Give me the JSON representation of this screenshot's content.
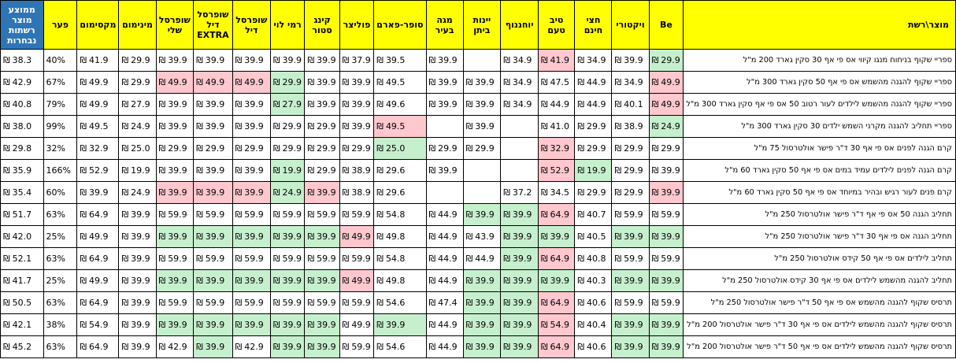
{
  "columns": [
    "מוצר\\רשת",
    "Be",
    "ויקטורי",
    "חצי חינם",
    "טיב טעם",
    "יוחננוף",
    "יינות ביתן",
    "מגה בעיר",
    "סופר-פארם",
    "פוליצר",
    "קינג סטור",
    "רמי לוי",
    "שופרסל דיל",
    "שופרסל דיל EXTRA",
    "שופרסל שלי",
    "מינימום",
    "מקסימום",
    "פער",
    "ממוצע מוצר רשתות נבחרות"
  ],
  "currency": "₪",
  "status_colors": {
    "cheap": "#c6efce",
    "pricey": "#ffc7ce",
    "header": "#ffff00",
    "avg_header": "#2e75b6"
  },
  "rows": [
    {
      "product": "ספריי שקוף בניחוח מנגו קיווי אס פי אף 30 סקין גארד 200 מ\"ל",
      "prices": [
        "29.9",
        "39.9",
        "34.9",
        "41.9",
        "34.9",
        "",
        "39.9",
        "39.5",
        "37.9",
        "39.9",
        "39.9",
        "39.9",
        "39.9",
        "39.9"
      ],
      "cheap": [
        0
      ],
      "pricey": [
        3
      ],
      "min": "29.9",
      "max": "41.9",
      "gap": "40%",
      "avg": "38.3"
    },
    {
      "product": "ספריי שקוף להגנה מהשמש אס פי אף 50 סקין גארד 300 מ\"ל",
      "prices": [
        "49.9",
        "34.9",
        "44.9",
        "47.5",
        "34.9",
        "39.9",
        "39.9",
        "49.5",
        "39.9",
        "39.9",
        "29.9",
        "49.9",
        "49.9",
        "49.9"
      ],
      "cheap": [
        10
      ],
      "pricey": [
        0,
        11,
        12,
        13
      ],
      "min": "29.9",
      "max": "49.9",
      "gap": "67%",
      "avg": "42.9"
    },
    {
      "product": "ספריי שקוף להגנה מהשמש לילדים לעור רטוב 50 אס פי אף סקין גארד 300 מ\"ל",
      "prices": [
        "49.9",
        "40.1",
        "44.9",
        "44.9",
        "34.9",
        "39.9",
        "39.9",
        "49.6",
        "39.9",
        "39.9",
        "27.9",
        "39.9",
        "39.9",
        "39.9"
      ],
      "cheap": [
        10
      ],
      "pricey": [
        0
      ],
      "min": "27.9",
      "max": "49.9",
      "gap": "79%",
      "avg": "40.8"
    },
    {
      "product": "ספריי תחליב להגנה מקרני השמש ילדים 30 סקין גארד 300 מ\"ל",
      "prices": [
        "24.9",
        "38.9",
        "29.9",
        "41.0",
        "",
        "39.9",
        "",
        "49.5",
        "39.9",
        "29.9",
        "29.9",
        "39.9",
        "39.9",
        "39.9"
      ],
      "cheap": [
        0
      ],
      "pricey": [
        7
      ],
      "min": "24.9",
      "max": "49.5",
      "gap": "99%",
      "avg": "38.0"
    },
    {
      "product": "קרם הגנה לפנים אס פי אף 30 ד\"ר פישר אולטרסול 75 מ\"ל",
      "prices": [
        "29.9",
        "29.9",
        "29.9",
        "32.9",
        "",
        "29.9",
        "29.9",
        "25.0",
        "29.9",
        "29.9",
        "29.9",
        "29.9",
        "29.9",
        "29.9"
      ],
      "cheap": [
        7
      ],
      "pricey": [
        3
      ],
      "min": "25.0",
      "max": "32.9",
      "gap": "32%",
      "avg": "29.8"
    },
    {
      "product": "קרם הגנה לפנים לילדים עמיד במים אס פי אף 50 סקין גארד 60 מ\"ל",
      "prices": [
        "39.9",
        "29.9",
        "19.9",
        "52.9",
        "",
        "",
        "39.9",
        "29.6",
        "38.9",
        "29.9",
        "19.9",
        "39.9",
        "39.9",
        "39.9"
      ],
      "cheap": [
        2,
        10
      ],
      "pricey": [
        3
      ],
      "min": "19.9",
      "max": "52.9",
      "gap": "166%",
      "avg": "35.9"
    },
    {
      "product": "קרם פנים לעור רגיש ובהיר במיוחד אס פי אף 50 סקין גארד 60 מ\"ל",
      "prices": [
        "39.9",
        "29.9",
        "29.9",
        "34.5",
        "37.2",
        "",
        "",
        "29.6",
        "38.9",
        "39.9",
        "24.9",
        "39.9",
        "39.9",
        "39.9"
      ],
      "cheap": [
        10
      ],
      "pricey": [
        0,
        9,
        11,
        12,
        13
      ],
      "min": "24.9",
      "max": "39.9",
      "gap": "60%",
      "avg": "35.4"
    },
    {
      "product": "תחליב הגנה 50 אס פי אף ד\"ר פישר אולטרסול 250 מ\"ל",
      "prices": [
        "59.9",
        "59.9",
        "40.7",
        "64.9",
        "39.9",
        "39.9",
        "44.9",
        "54.8",
        "59.9",
        "59.9",
        "59.9",
        "59.9",
        "59.9",
        "59.9"
      ],
      "cheap": [
        4,
        5
      ],
      "pricey": [
        3
      ],
      "min": "39.9",
      "max": "64.9",
      "gap": "63%",
      "avg": "51.7"
    },
    {
      "product": "תחליב הגנה אס פי אף 30 ד\"ר פישר אולטרסול 250 מ\"ל",
      "prices": [
        "39.9",
        "39.9",
        "40.5",
        "39.9",
        "39.9",
        "43.9",
        "44.9",
        "49.8",
        "49.9",
        "39.9",
        "39.9",
        "39.9",
        "39.9",
        "39.9"
      ],
      "cheap": [
        0,
        1,
        3,
        4,
        9,
        10,
        11,
        12,
        13
      ],
      "pricey": [
        8
      ],
      "min": "39.9",
      "max": "49.9",
      "gap": "25%",
      "avg": "42.0"
    },
    {
      "product": "תחליב לילדים אס פי אף 50 קידס אולטרסול 250 מ\"ל",
      "prices": [
        "59.9",
        "59.9",
        "40.8",
        "64.9",
        "39.9",
        "44.9",
        "44.9",
        "54.8",
        "59.9",
        "59.9",
        "59.9",
        "59.9",
        "59.9",
        "59.9"
      ],
      "cheap": [
        4
      ],
      "pricey": [
        3
      ],
      "min": "39.9",
      "max": "64.9",
      "gap": "63%",
      "avg": "52.1"
    },
    {
      "product": "תחליב להגנה מהשמש לילדים אס פי אף 30 קידס אולטרסול 250 מ\"ל",
      "prices": [
        "39.9",
        "39.9",
        "40.3",
        "39.9",
        "39.9",
        "39.9",
        "44.9",
        "49.8",
        "49.9",
        "39.9",
        "39.9",
        "39.9",
        "39.9",
        "39.9"
      ],
      "cheap": [
        0,
        1,
        3,
        4,
        5,
        9,
        10,
        11,
        12,
        13
      ],
      "pricey": [
        8
      ],
      "min": "39.9",
      "max": "49.9",
      "gap": "25%",
      "avg": "41.7"
    },
    {
      "product": "תרסיס שקוף להגנה מהשמש אס פי אף 50 ד\"ר פישר אולטרסול 250 מ\"ל",
      "prices": [
        "59.9",
        "59.9",
        "40.6",
        "64.9",
        "39.9",
        "39.9",
        "47.4",
        "54.6",
        "59.9",
        "59.9",
        "59.9",
        "59.9",
        "59.9",
        "59.9"
      ],
      "cheap": [
        4,
        5
      ],
      "pricey": [
        3
      ],
      "min": "39.9",
      "max": "64.9",
      "gap": "63%",
      "avg": "50.5"
    },
    {
      "product": "תרסיס שקוף להגנה מהשמש לילדים אס פי אף 30 ד\"ר פישר אולטרסול 200 מ\"ל",
      "prices": [
        "39.9",
        "39.9",
        "40.4",
        "54.9",
        "39.9",
        "39.9",
        "44.9",
        "39.9",
        "49.9",
        "39.9",
        "39.9",
        "39.9",
        "39.9",
        "39.9"
      ],
      "cheap": [
        0,
        1,
        4,
        5,
        7,
        9,
        10,
        11,
        12,
        13
      ],
      "pricey": [
        3
      ],
      "min": "39.9",
      "max": "54.9",
      "gap": "38%",
      "avg": "42.1"
    },
    {
      "product": "תרסיס שקוף להגנה מהשמש לילדים אס פי אף 50 ד\"ר פישר אולטרסול 200 מ\"ל",
      "prices": [
        "39.9",
        "39.9",
        "40.6",
        "64.9",
        "39.9",
        "39.9",
        "44.9",
        "54.6",
        "59.9",
        "39.9",
        "39.9",
        "42.9",
        "39.9",
        "42.9"
      ],
      "cheap": [
        0,
        1,
        4,
        5,
        9,
        10,
        12
      ],
      "pricey": [
        3
      ],
      "min": "39.9",
      "max": "64.9",
      "gap": "63%",
      "avg": "45.2"
    }
  ]
}
